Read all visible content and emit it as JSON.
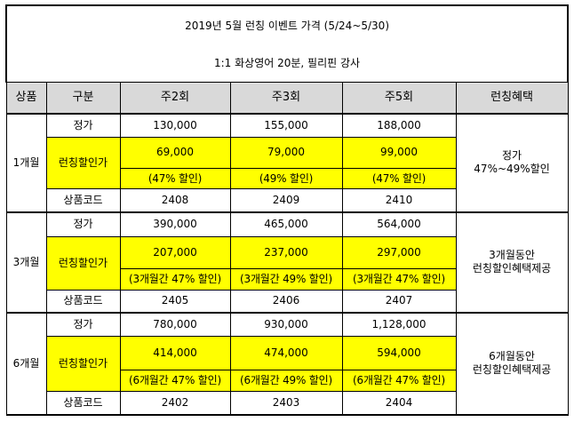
{
  "header": {
    "title": "2019년 5월 런칭 이벤트 가격 (5/24~5/30)",
    "subtitle": "1:1 화상영어 20분, 필리핀 강사"
  },
  "columns": {
    "product": "상품",
    "category": "구분",
    "freq2": "주2회",
    "freq3": "주3회",
    "freq5": "주5회",
    "perk": "런칭혜택"
  },
  "rows": {
    "m1": {
      "duration": "1개월",
      "regular_label": "정가",
      "regular": [
        "130,000",
        "155,000",
        "188,000"
      ],
      "launch_label": "런칭할인가",
      "launch": [
        "69,000",
        "79,000",
        "99,000"
      ],
      "discount": [
        "(47% 할인)",
        "(49% 할인)",
        "(47% 할인)"
      ],
      "code_label": "상품코드",
      "codes": [
        "2408",
        "2409",
        "2410"
      ],
      "perk_line1": "정가",
      "perk_line2": "47%~49%할인"
    },
    "m3": {
      "duration": "3개월",
      "regular_label": "정가",
      "regular": [
        "390,000",
        "465,000",
        "564,000"
      ],
      "launch_label": "런칭할인가",
      "launch": [
        "207,000",
        "237,000",
        "297,000"
      ],
      "discount": [
        "(3개월간 47% 할인)",
        "(3개월간 49% 할인)",
        "(3개월간 47% 할인)"
      ],
      "code_label": "상품코드",
      "codes": [
        "2405",
        "2406",
        "2407"
      ],
      "perk_line1": "3개월동안",
      "perk_line2": "런칭할인혜택제공"
    },
    "m6": {
      "duration": "6개월",
      "regular_label": "정가",
      "regular": [
        "780,000",
        "930,000",
        "1,128,000"
      ],
      "launch_label": "런칭할인가",
      "launch": [
        "414,000",
        "474,000",
        "594,000"
      ],
      "discount": [
        "(6개월간 47% 할인)",
        "(6개월간 49% 할인)",
        "(6개월간 47% 할인)"
      ],
      "code_label": "상품코드",
      "codes": [
        "2402",
        "2403",
        "2404"
      ],
      "perk_line1": "6개월동안",
      "perk_line2": "런칭할인혜택제공"
    }
  },
  "colors": {
    "highlight": "#ffff00",
    "header_bg": "#d9d9d9",
    "border": "#000000"
  }
}
